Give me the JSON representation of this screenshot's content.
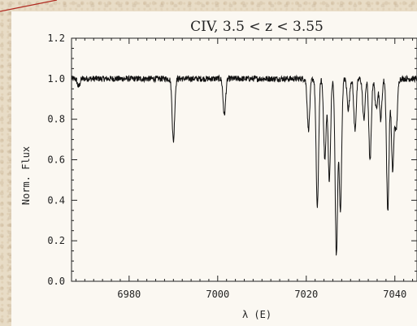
{
  "chart_data": {
    "type": "line",
    "title": "CIV, 3.5 < z < 3.55",
    "xlabel": "λ (E)",
    "ylabel": "Norm. Flux",
    "xlim": [
      6967,
      7045
    ],
    "ylim": [
      0.0,
      1.2
    ],
    "xticks": [
      6980,
      7000,
      7020,
      7040
    ],
    "yticks": [
      0.0,
      0.2,
      0.4,
      0.6,
      0.8,
      1.0,
      1.2
    ],
    "ytick_labels": [
      "0.0",
      "0.2",
      "0.4",
      "0.6",
      "0.8",
      "1.0",
      "1.2"
    ],
    "continuum": 1.0,
    "absorption_lines": [
      {
        "center": 6968.6,
        "depth": 0.04
      },
      {
        "center": 6990.0,
        "depth": 0.31
      },
      {
        "center": 7001.5,
        "depth": 0.18
      },
      {
        "center": 7020.5,
        "depth": 0.25
      },
      {
        "center": 7022.5,
        "depth": 0.64
      },
      {
        "center": 7024.2,
        "depth": 0.4
      },
      {
        "center": 7025.2,
        "depth": 0.5
      },
      {
        "center": 7026.8,
        "depth": 0.87
      },
      {
        "center": 7027.7,
        "depth": 0.65
      },
      {
        "center": 7029.5,
        "depth": 0.15
      },
      {
        "center": 7031.0,
        "depth": 0.25
      },
      {
        "center": 7033.0,
        "depth": 0.2
      },
      {
        "center": 7034.4,
        "depth": 0.41
      },
      {
        "center": 7035.8,
        "depth": 0.15
      },
      {
        "center": 7036.8,
        "depth": 0.2
      },
      {
        "center": 7038.4,
        "depth": 0.65
      },
      {
        "center": 7039.5,
        "depth": 0.45
      },
      {
        "center": 7040.3,
        "depth": 0.25
      }
    ],
    "grid": false
  }
}
